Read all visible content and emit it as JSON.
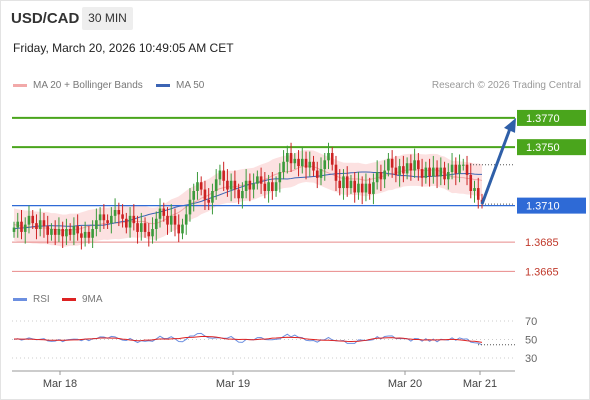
{
  "header": {
    "symbol": "USD/CAD",
    "timeframe": "30 MIN"
  },
  "timestamp": "Friday, March 20, 2026 10:49:05 AM CET",
  "legend": {
    "ma20_label": "MA 20 + Bollinger Bands",
    "ma50_label": "MA 50",
    "rsi_label": "RSI",
    "ma9_label": "9MA"
  },
  "copyright": "Research © 2026 Trading Central",
  "colors": {
    "up_candle": "#3c9a3c",
    "down_candle": "#cc2222",
    "bollinger_fill": "#fbdcdc",
    "ma20": "#f2a9a9",
    "ma50": "#3c64b4",
    "resistance": "#4aa51c",
    "pivot": "#2e6ad6",
    "support": "#e88a8a",
    "rsi": "#6c8fe0",
    "rsi_ma": "#dd2222"
  },
  "chart_data": [
    {
      "type": "candlestick",
      "title": "",
      "x_ticks": [
        "Mar 18",
        "Mar 19",
        "Mar 20",
        "Mar 21"
      ],
      "ylim": [
        1.3655,
        1.3785
      ],
      "levels": [
        {
          "name": "resistance-2",
          "value": 1.377,
          "label": "1.3770",
          "kind": "resistance"
        },
        {
          "name": "resistance-1",
          "value": 1.375,
          "label": "1.3750",
          "kind": "resistance"
        },
        {
          "name": "pivot",
          "value": 1.371,
          "label": "1.3710",
          "kind": "pivot"
        },
        {
          "name": "support-1",
          "value": 1.3685,
          "label": "1.3685",
          "kind": "support"
        },
        {
          "name": "support-2",
          "value": 1.3665,
          "label": "1.3665",
          "kind": "support"
        }
      ],
      "close": [
        1.3695,
        1.3699,
        1.3692,
        1.3697,
        1.3703,
        1.3698,
        1.3694,
        1.37,
        1.3696,
        1.369,
        1.3694,
        1.369,
        1.3694,
        1.3689,
        1.3694,
        1.369,
        1.3696,
        1.3691,
        1.3688,
        1.3692,
        1.3688,
        1.3694,
        1.37,
        1.3704,
        1.37,
        1.3698,
        1.3703,
        1.3707,
        1.3704,
        1.3701,
        1.3695,
        1.3703,
        1.3698,
        1.3692,
        1.3698,
        1.3692,
        1.3689,
        1.3694,
        1.3701,
        1.3708,
        1.3703,
        1.3697,
        1.3703,
        1.3697,
        1.3691,
        1.3697,
        1.3704,
        1.3714,
        1.372,
        1.3726,
        1.3721,
        1.3714,
        1.3712,
        1.372,
        1.3728,
        1.3734,
        1.3727,
        1.3721,
        1.3727,
        1.3721,
        1.3715,
        1.372,
        1.3727,
        1.3721,
        1.3725,
        1.373,
        1.3725,
        1.372,
        1.3726,
        1.372,
        1.3726,
        1.3733,
        1.374,
        1.3746,
        1.3739,
        1.3742,
        1.3737,
        1.3742,
        1.3736,
        1.374,
        1.3734,
        1.3729,
        1.3735,
        1.3741,
        1.3746,
        1.3738,
        1.3727,
        1.3722,
        1.373,
        1.3722,
        1.3727,
        1.3719,
        1.3725,
        1.3719,
        1.3725,
        1.3718,
        1.3726,
        1.3733,
        1.3728,
        1.3734,
        1.3742,
        1.3736,
        1.3731,
        1.3737,
        1.3732,
        1.3739,
        1.3734,
        1.3741,
        1.3735,
        1.3729,
        1.3736,
        1.373,
        1.3736,
        1.373,
        1.3736,
        1.3728,
        1.3733,
        1.3738,
        1.3732,
        1.3738,
        1.3738,
        1.3731,
        1.372,
        1.3722,
        1.3714,
        1.3712
      ],
      "ma20_band_upper": 1.3745,
      "ma20_band_lower": 1.3688,
      "forecast": {
        "from": 1.3711,
        "to": 1.377
      }
    },
    {
      "type": "line",
      "title": "",
      "series": [
        {
          "name": "RSI"
        },
        {
          "name": "9MA"
        }
      ],
      "y_ticks": [
        70,
        50,
        30
      ],
      "ylim": [
        20,
        80
      ]
    }
  ]
}
